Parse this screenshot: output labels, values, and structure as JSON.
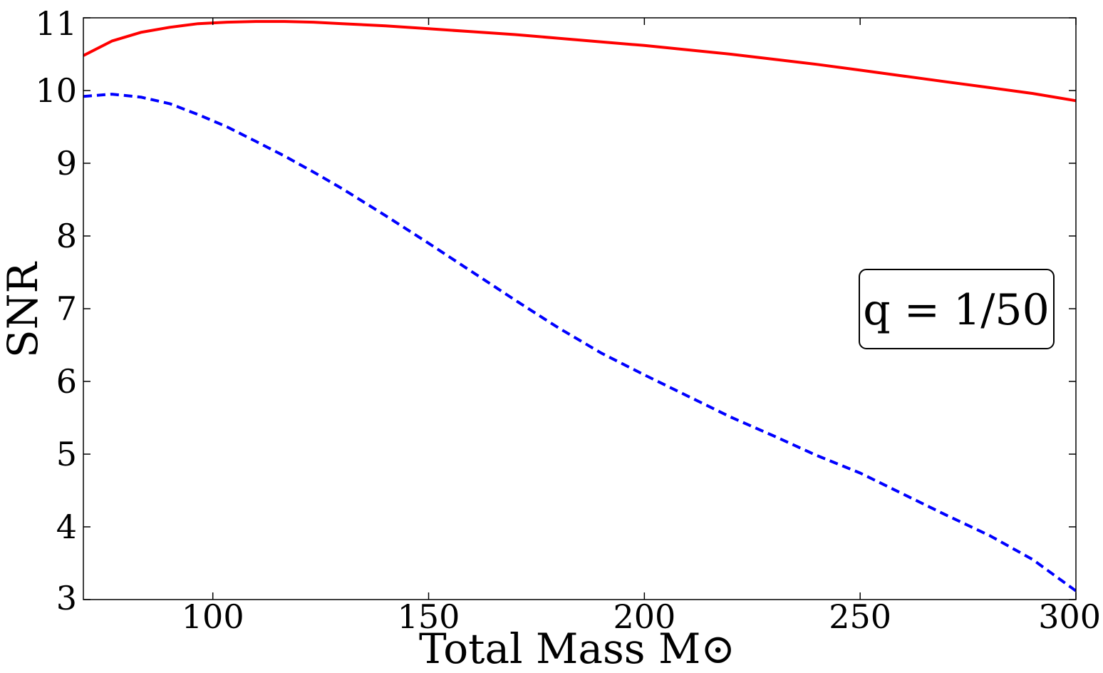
{
  "chart_data": {
    "type": "line",
    "xlabel": "Total Mass M⊙",
    "ylabel": "SNR",
    "xlim": [
      70,
      300
    ],
    "ylim": [
      3,
      11
    ],
    "xticks": [
      100,
      150,
      200,
      250,
      300
    ],
    "yticks": [
      3,
      4,
      5,
      6,
      7,
      8,
      9,
      10,
      11
    ],
    "grid": false,
    "annotation": "q = 1/50",
    "series": [
      {
        "style": "solid",
        "color": "#ff0000",
        "x": [
          70,
          76.6,
          83.3,
          90,
          96.6,
          103.3,
          110,
          116.6,
          123.3,
          130,
          140,
          150,
          160,
          170,
          180,
          190,
          200,
          210,
          220,
          230,
          240,
          250,
          260,
          270,
          280,
          290,
          300
        ],
        "y": [
          10.48,
          10.68,
          10.8,
          10.87,
          10.92,
          10.94,
          10.95,
          10.95,
          10.94,
          10.92,
          10.89,
          10.85,
          10.81,
          10.77,
          10.72,
          10.67,
          10.62,
          10.56,
          10.5,
          10.43,
          10.36,
          10.28,
          10.2,
          10.12,
          10.04,
          9.96,
          9.86
        ]
      },
      {
        "style": "dashed",
        "color": "#0000ff",
        "x": [
          70,
          76.6,
          83.3,
          90,
          96.6,
          103.3,
          110,
          116.6,
          123.3,
          130,
          140,
          150,
          160,
          170,
          180,
          190,
          200,
          210,
          220,
          230,
          240,
          250,
          260,
          270,
          280,
          290,
          300
        ],
        "y": [
          9.92,
          9.95,
          9.91,
          9.82,
          9.67,
          9.5,
          9.3,
          9.1,
          8.88,
          8.65,
          8.28,
          7.9,
          7.51,
          7.12,
          6.74,
          6.39,
          6.09,
          5.8,
          5.51,
          5.25,
          4.98,
          4.74,
          4.45,
          4.16,
          3.88,
          3.55,
          3.12
        ]
      }
    ]
  }
}
